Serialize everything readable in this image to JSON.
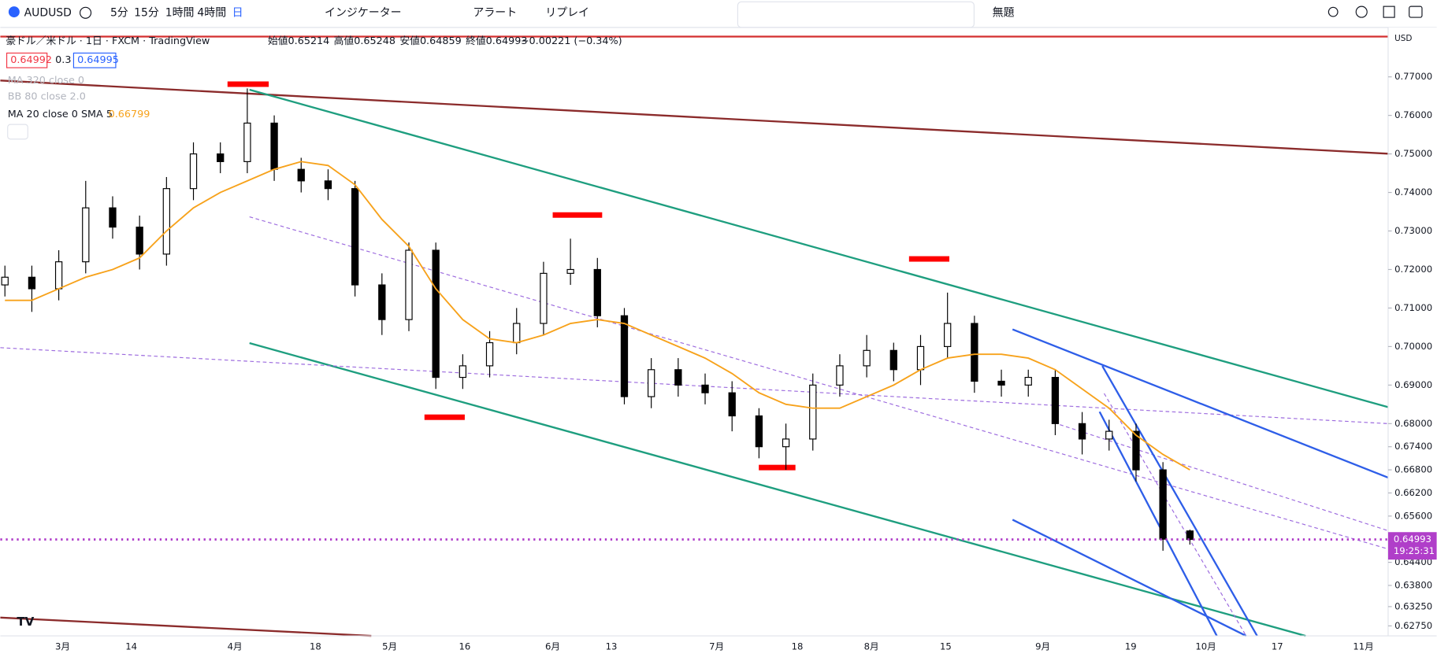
{
  "toolbar": {
    "symbol": "AUDUSD",
    "intervals": [
      "5分",
      "15分",
      "1時間",
      "4時間",
      "日"
    ],
    "indicators": "インジケーター",
    "alert": "アラート",
    "replay": "リプレイ",
    "layout": "無題"
  },
  "legend": {
    "title": "豪ドル／米ドル · 1日 · FXCM · TradingView",
    "open_label": "始値",
    "open": 0.65214,
    "high_label": "高値",
    "high": 0.65248,
    "low_label": "安値",
    "low": 0.64859,
    "close_label": "終値",
    "close": 0.64993,
    "change": "−0.00221 (−0.34%)",
    "bid": "0.64992",
    "spread": "0.3",
    "ask": "0.64995",
    "studies": [
      "MA 320 close 0",
      "BB 80 close 2.0",
      "MA 20 close 0 SMA 5"
    ],
    "ma_value": "0.66799"
  },
  "chart_data": {
    "type": "candlestick",
    "currency": "USD",
    "countdown": "19:25:31",
    "x_labels": [
      "3月",
      "14",
      "4月",
      "18",
      "5月",
      "16",
      "6月",
      "13",
      "7月",
      "18",
      "8月",
      "15",
      "9月",
      "19",
      "10月",
      "17",
      "11月"
    ],
    "open": [
      0.716,
      0.718,
      0.715,
      0.722,
      0.736,
      0.731,
      0.724,
      0.741,
      0.75,
      0.748,
      0.758,
      0.746,
      0.743,
      0.741,
      0.716,
      0.707,
      0.725,
      0.692,
      0.695,
      0.701,
      0.706,
      0.719,
      0.72,
      0.708,
      0.687,
      0.694,
      0.69,
      0.688,
      0.682,
      0.674,
      0.676,
      0.69,
      0.695,
      0.699,
      0.694,
      0.7,
      0.706,
      0.691,
      0.69,
      0.692,
      0.68,
      0.676,
      0.678,
      0.668,
      0.65214
    ],
    "high": [
      0.721,
      0.721,
      0.725,
      0.743,
      0.739,
      0.734,
      0.744,
      0.753,
      0.753,
      0.767,
      0.76,
      0.749,
      0.746,
      0.743,
      0.719,
      0.727,
      0.727,
      0.698,
      0.704,
      0.71,
      0.722,
      0.728,
      0.723,
      0.71,
      0.697,
      0.697,
      0.693,
      0.691,
      0.684,
      0.68,
      0.693,
      0.698,
      0.703,
      0.701,
      0.703,
      0.714,
      0.708,
      0.694,
      0.694,
      0.694,
      0.683,
      0.681,
      0.68,
      0.67,
      0.65248
    ],
    "low": [
      0.713,
      0.709,
      0.712,
      0.719,
      0.728,
      0.72,
      0.721,
      0.738,
      0.745,
      0.745,
      0.743,
      0.74,
      0.738,
      0.713,
      0.703,
      0.704,
      0.689,
      0.689,
      0.692,
      0.698,
      0.703,
      0.716,
      0.705,
      0.685,
      0.684,
      0.687,
      0.685,
      0.678,
      0.671,
      0.668,
      0.673,
      0.687,
      0.692,
      0.691,
      0.69,
      0.697,
      0.688,
      0.687,
      0.687,
      0.677,
      0.672,
      0.673,
      0.665,
      0.647,
      0.64859
    ],
    "close": [
      0.718,
      0.715,
      0.722,
      0.736,
      0.731,
      0.724,
      0.741,
      0.75,
      0.748,
      0.758,
      0.746,
      0.743,
      0.741,
      0.716,
      0.707,
      0.725,
      0.692,
      0.695,
      0.701,
      0.706,
      0.719,
      0.72,
      0.708,
      0.687,
      0.694,
      0.69,
      0.688,
      0.682,
      0.674,
      0.676,
      0.69,
      0.695,
      0.699,
      0.694,
      0.7,
      0.706,
      0.691,
      0.69,
      0.692,
      0.68,
      0.676,
      0.678,
      0.668,
      0.65,
      0.64993
    ],
    "ma": {
      "color": "#f7a21b",
      "values": [
        0.712,
        0.712,
        0.715,
        0.718,
        0.72,
        0.723,
        0.73,
        0.736,
        0.74,
        0.743,
        0.746,
        0.748,
        0.747,
        0.742,
        0.733,
        0.726,
        0.715,
        0.707,
        0.702,
        0.701,
        0.703,
        0.706,
        0.707,
        0.706,
        0.703,
        0.7,
        0.697,
        0.693,
        0.688,
        0.685,
        0.684,
        0.684,
        0.687,
        0.69,
        0.694,
        0.697,
        0.698,
        0.698,
        0.697,
        0.694,
        0.689,
        0.684,
        0.677,
        0.672,
        0.668
      ]
    },
    "ylim": [
      0.6249,
      0.7814
    ],
    "yticks": [
      {
        "value": 0.77,
        "label": "0.77000"
      },
      {
        "value": 0.76,
        "label": "0.76000"
      },
      {
        "value": 0.75,
        "label": "0.75000"
      },
      {
        "value": 0.74,
        "label": "0.74000"
      },
      {
        "value": 0.73,
        "label": "0.73000"
      },
      {
        "value": 0.72,
        "label": "0.72000"
      },
      {
        "value": 0.71,
        "label": "0.71000"
      },
      {
        "value": 0.7,
        "label": "0.70000"
      },
      {
        "value": 0.69,
        "label": "0.69000"
      },
      {
        "value": 0.68,
        "label": "0.68000"
      },
      {
        "value": 0.674,
        "label": "0.67400"
      },
      {
        "value": 0.668,
        "label": "0.66800"
      },
      {
        "value": 0.662,
        "label": "0.66200"
      },
      {
        "value": 0.656,
        "label": "0.65600"
      },
      {
        "value": 0.644,
        "label": "0.64400"
      },
      {
        "value": 0.638,
        "label": "0.63800"
      },
      {
        "value": 0.6325,
        "label": "0.63250"
      },
      {
        "value": 0.6275,
        "label": "0.62750"
      }
    ]
  }
}
